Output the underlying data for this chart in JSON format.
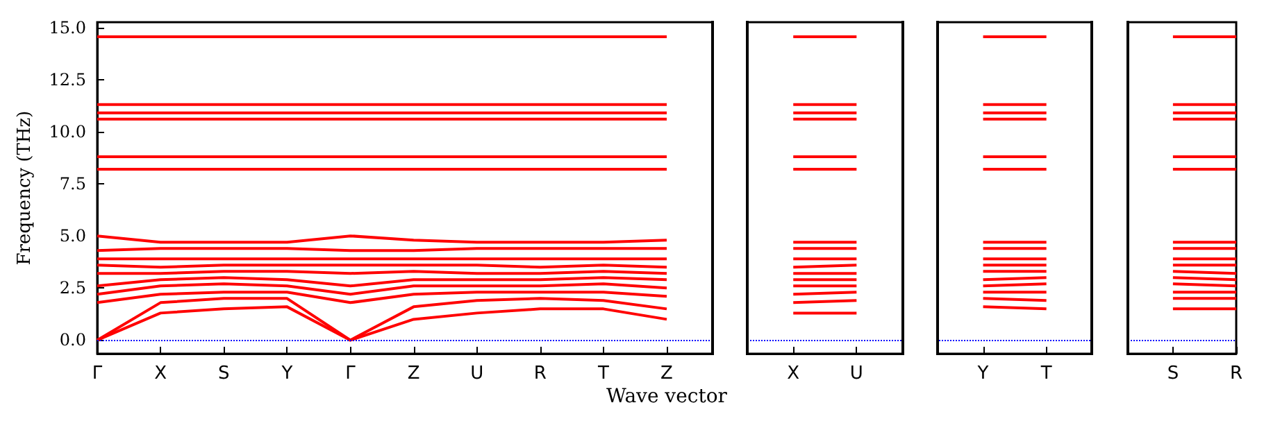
{
  "chart_data": {
    "type": "line",
    "xlabel": "Wave vector",
    "ylabel": "Frequency (THz)",
    "grid": false,
    "marker": "none",
    "categories": [
      "Γ",
      "X",
      "S",
      "Y",
      "Γ",
      "Z",
      "U",
      "R",
      "T",
      "Z",
      null,
      "X",
      "U",
      null,
      "Y",
      "T",
      null,
      "S",
      "R"
    ],
    "ylim": [
      -0.65,
      15.25
    ],
    "yticks": [
      {
        "value": 0,
        "label": "0.0"
      },
      {
        "value": 2.5,
        "label": "2.5"
      },
      {
        "value": 5,
        "label": "5.0"
      },
      {
        "value": 7.5,
        "label": "7.5"
      },
      {
        "value": 10,
        "label": "10.0"
      },
      {
        "value": 12.5,
        "label": "12.5"
      },
      {
        "value": 15,
        "label": "15.0"
      }
    ],
    "ref_lines": [
      {
        "axis": "y",
        "value": 0,
        "color": "#0000ff",
        "line_style": "dotted"
      }
    ],
    "series": [
      {
        "color": "#ff0000",
        "values": [
          0,
          1.3,
          1.5,
          1.6,
          0,
          1.0,
          1.3,
          1.5,
          1.5,
          1.0,
          null,
          1.3,
          1.3,
          null,
          1.6,
          1.5,
          null,
          1.5,
          1.5
        ]
      },
      {
        "color": "#ff0000",
        "values": [
          0,
          1.8,
          2.0,
          2.0,
          0,
          1.6,
          1.9,
          2.0,
          1.9,
          1.5,
          null,
          1.8,
          1.9,
          null,
          2.0,
          1.9,
          null,
          2.0,
          2.0
        ]
      },
      {
        "color": "#ff0000",
        "values": [
          1.8,
          2.2,
          2.3,
          2.3,
          1.8,
          2.2,
          2.3,
          2.3,
          2.3,
          2.1,
          null,
          2.2,
          2.3,
          null,
          2.3,
          2.3,
          null,
          2.3,
          2.3
        ]
      },
      {
        "color": "#ff0000",
        "values": [
          2.2,
          2.6,
          2.7,
          2.6,
          2.2,
          2.6,
          2.6,
          2.6,
          2.7,
          2.5,
          null,
          2.6,
          2.6,
          null,
          2.6,
          2.7,
          null,
          2.7,
          2.6
        ]
      },
      {
        "color": "#ff0000",
        "values": [
          2.6,
          2.9,
          3.0,
          2.9,
          2.6,
          2.9,
          2.9,
          2.9,
          3.0,
          2.9,
          null,
          2.9,
          2.9,
          null,
          2.9,
          3.0,
          null,
          3.0,
          2.9
        ]
      },
      {
        "color": "#ff0000",
        "values": [
          3.2,
          3.2,
          3.3,
          3.3,
          3.2,
          3.3,
          3.2,
          3.2,
          3.3,
          3.2,
          null,
          3.2,
          3.2,
          null,
          3.3,
          3.3,
          null,
          3.3,
          3.2
        ]
      },
      {
        "color": "#ff0000",
        "values": [
          3.6,
          3.5,
          3.6,
          3.6,
          3.6,
          3.6,
          3.6,
          3.5,
          3.6,
          3.5,
          null,
          3.5,
          3.6,
          null,
          3.6,
          3.6,
          null,
          3.6,
          3.6
        ]
      },
      {
        "color": "#ff0000",
        "values": [
          3.9,
          3.9,
          3.9,
          3.9,
          3.9,
          3.9,
          3.9,
          3.9,
          3.9,
          3.9,
          null,
          3.9,
          3.9,
          null,
          3.9,
          3.9,
          null,
          3.9,
          3.9
        ]
      },
      {
        "color": "#ff0000",
        "values": [
          4.3,
          4.4,
          4.4,
          4.4,
          4.3,
          4.3,
          4.4,
          4.4,
          4.4,
          4.4,
          null,
          4.4,
          4.4,
          null,
          4.4,
          4.4,
          null,
          4.4,
          4.4
        ]
      },
      {
        "color": "#ff0000",
        "values": [
          5.0,
          4.7,
          4.7,
          4.7,
          5.0,
          4.8,
          4.7,
          4.7,
          4.7,
          4.8,
          null,
          4.7,
          4.7,
          null,
          4.7,
          4.7,
          null,
          4.7,
          4.7
        ]
      },
      {
        "color": "#ff0000",
        "values": [
          8.2,
          8.2,
          8.2,
          8.2,
          8.2,
          8.2,
          8.2,
          8.2,
          8.2,
          8.2,
          null,
          8.2,
          8.2,
          null,
          8.2,
          8.2,
          null,
          8.2,
          8.2
        ]
      },
      {
        "color": "#ff0000",
        "values": [
          8.8,
          8.8,
          8.8,
          8.8,
          8.8,
          8.8,
          8.8,
          8.8,
          8.8,
          8.8,
          null,
          8.8,
          8.8,
          null,
          8.8,
          8.8,
          null,
          8.8,
          8.8
        ]
      },
      {
        "color": "#ff0000",
        "values": [
          10.6,
          10.6,
          10.6,
          10.6,
          10.6,
          10.6,
          10.6,
          10.6,
          10.6,
          10.6,
          null,
          10.6,
          10.6,
          null,
          10.6,
          10.6,
          null,
          10.6,
          10.6
        ]
      },
      {
        "color": "#ff0000",
        "values": [
          10.9,
          10.9,
          10.9,
          10.9,
          10.9,
          10.9,
          10.9,
          10.9,
          10.9,
          10.9,
          null,
          10.9,
          10.9,
          null,
          10.9,
          10.9,
          null,
          10.9,
          10.9
        ]
      },
      {
        "color": "#ff0000",
        "values": [
          11.3,
          11.3,
          11.3,
          11.3,
          11.3,
          11.3,
          11.3,
          11.3,
          11.3,
          11.3,
          null,
          11.3,
          11.3,
          null,
          11.3,
          11.3,
          null,
          11.3,
          11.3
        ]
      },
      {
        "color": "#ff0000",
        "values": [
          14.55,
          14.55,
          14.55,
          14.55,
          14.55,
          14.55,
          14.55,
          14.55,
          14.55,
          14.55,
          null,
          14.55,
          14.55,
          null,
          14.55,
          14.55,
          null,
          14.55,
          14.55
        ]
      }
    ]
  }
}
